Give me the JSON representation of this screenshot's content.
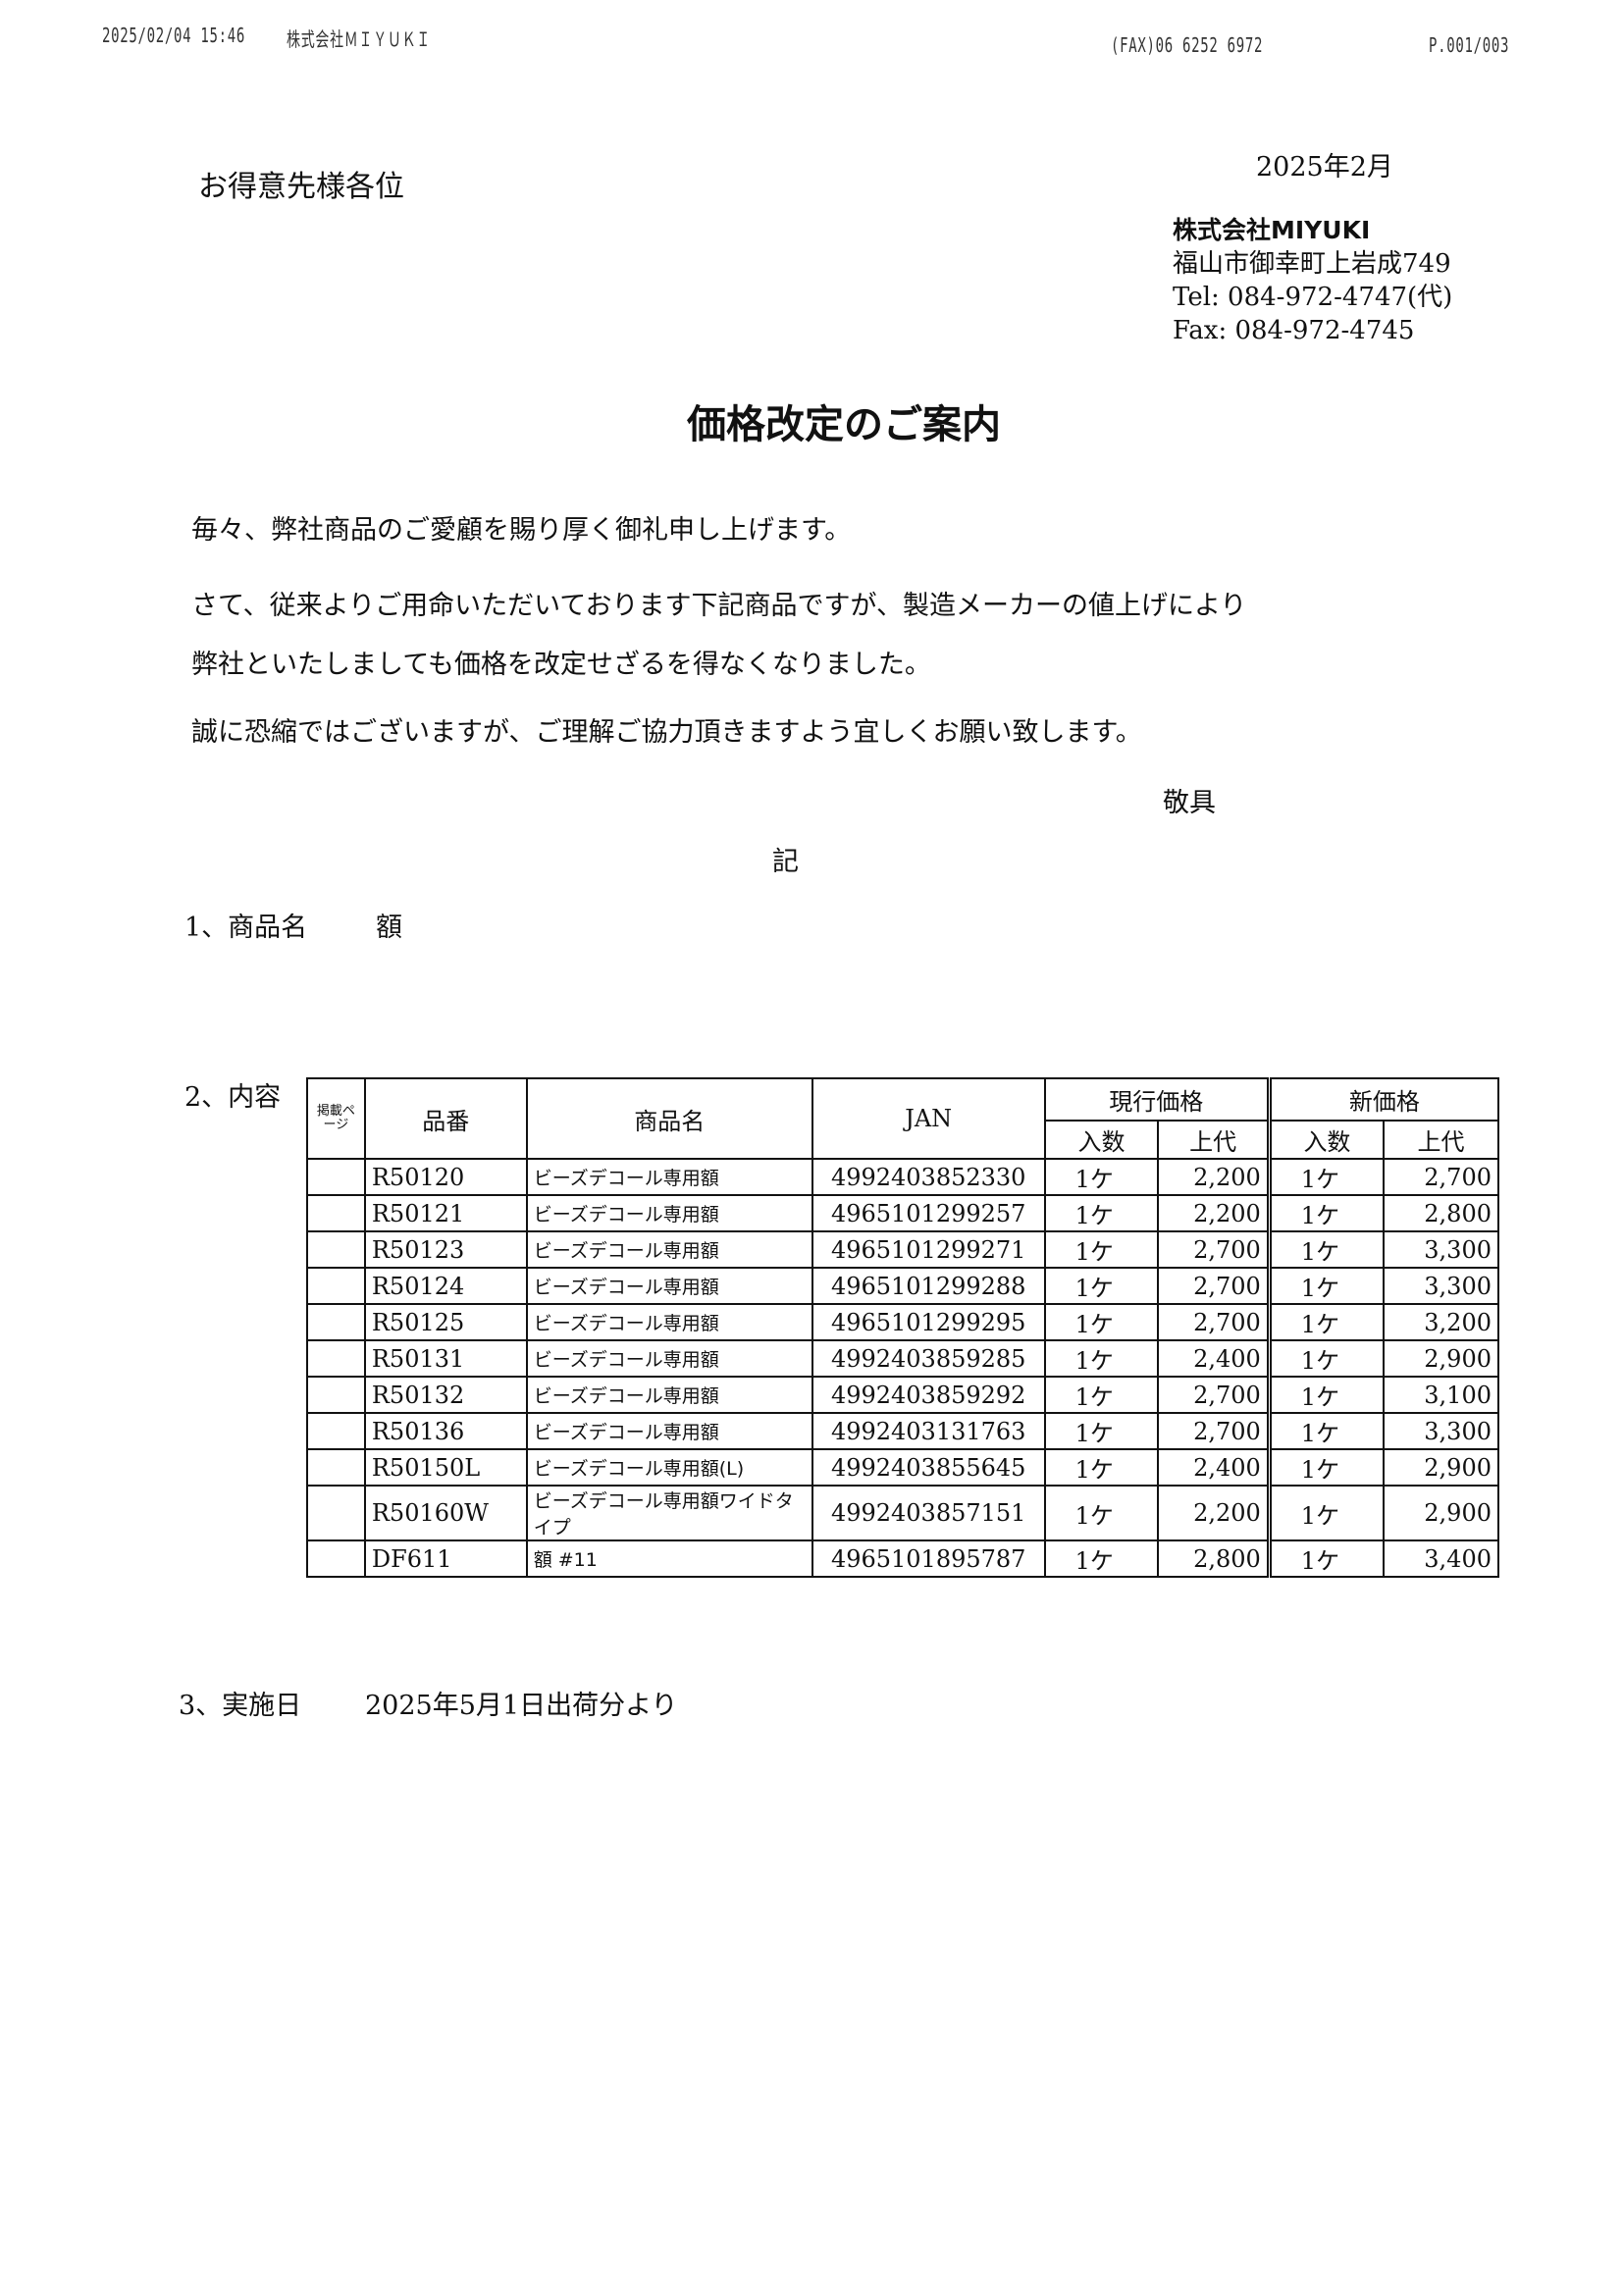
{
  "fax_header": {
    "datetime": "2025/02/04  15:46",
    "sender": "株式会社ＭＩＹＵＫＩ",
    "fax": "(FAX)06 6252 6972",
    "page": "P.001/003"
  },
  "recipient": "お得意先様各位",
  "date": "2025年2月",
  "company": {
    "name": "株式会社MIYUKI",
    "address": "福山市御幸町上岩成749",
    "tel": "Tel: 084-972-4747(代)",
    "fax": "Fax: 084-972-4745"
  },
  "title": "価格改定のご案内",
  "body": [
    "毎々、弊社商品のご愛顧を賜り厚く御礼申し上げます。",
    "さて、従来よりご用命いただいております下記商品ですが、製造メーカーの値上げにより",
    "弊社といたしましても価格を改定せざるを得なくなりました。",
    "誠に恐縮ではございますが、ご理解ご協力頂きますよう宜しくお願い致します。"
  ],
  "closing": "敬具",
  "ki": "記",
  "item1": {
    "label": "1、商品名",
    "value": "額"
  },
  "item2": {
    "label": "2、内容"
  },
  "item3": {
    "label": "3、実施日",
    "value": "2025年5月1日出荷分より"
  },
  "table": {
    "headers": {
      "page": "掲載ページ",
      "code": "品番",
      "name": "商品名",
      "jan": "JAN",
      "current": "現行価格",
      "new": "新価格",
      "qty": "入数",
      "price": "上代"
    },
    "rows": [
      {
        "page": "",
        "code": "R50120",
        "name": "ビーズデコール専用額",
        "jan": "4992403852330",
        "cur_qty": "1ケ",
        "cur_price": "2,200",
        "new_qty": "1ケ",
        "new_price": "2,700"
      },
      {
        "page": "",
        "code": "R50121",
        "name": "ビーズデコール専用額",
        "jan": "4965101299257",
        "cur_qty": "1ケ",
        "cur_price": "2,200",
        "new_qty": "1ケ",
        "new_price": "2,800"
      },
      {
        "page": "",
        "code": "R50123",
        "name": "ビーズデコール専用額",
        "jan": "4965101299271",
        "cur_qty": "1ケ",
        "cur_price": "2,700",
        "new_qty": "1ケ",
        "new_price": "3,300"
      },
      {
        "page": "",
        "code": "R50124",
        "name": "ビーズデコール専用額",
        "jan": "4965101299288",
        "cur_qty": "1ケ",
        "cur_price": "2,700",
        "new_qty": "1ケ",
        "new_price": "3,300"
      },
      {
        "page": "",
        "code": "R50125",
        "name": "ビーズデコール専用額",
        "jan": "4965101299295",
        "cur_qty": "1ケ",
        "cur_price": "2,700",
        "new_qty": "1ケ",
        "new_price": "3,200"
      },
      {
        "page": "",
        "code": "R50131",
        "name": "ビーズデコール専用額",
        "jan": "4992403859285",
        "cur_qty": "1ケ",
        "cur_price": "2,400",
        "new_qty": "1ケ",
        "new_price": "2,900"
      },
      {
        "page": "",
        "code": "R50132",
        "name": "ビーズデコール専用額",
        "jan": "4992403859292",
        "cur_qty": "1ケ",
        "cur_price": "2,700",
        "new_qty": "1ケ",
        "new_price": "3,100"
      },
      {
        "page": "",
        "code": "R50136",
        "name": "ビーズデコール専用額",
        "jan": "4992403131763",
        "cur_qty": "1ケ",
        "cur_price": "2,700",
        "new_qty": "1ケ",
        "new_price": "3,300"
      },
      {
        "page": "",
        "code": "R50150L",
        "name": "ビーズデコール専用額(L)",
        "jan": "4992403855645",
        "cur_qty": "1ケ",
        "cur_price": "2,400",
        "new_qty": "1ケ",
        "new_price": "2,900"
      },
      {
        "page": "",
        "code": "R50160W",
        "name": "ビーズデコール専用額ワイドタイプ",
        "jan": "4992403857151",
        "cur_qty": "1ケ",
        "cur_price": "2,200",
        "new_qty": "1ケ",
        "new_price": "2,900"
      },
      {
        "page": "",
        "code": "DF611",
        "name": "額 #11",
        "jan": "4965101895787",
        "cur_qty": "1ケ",
        "cur_price": "2,800",
        "new_qty": "1ケ",
        "new_price": "3,400"
      }
    ]
  }
}
